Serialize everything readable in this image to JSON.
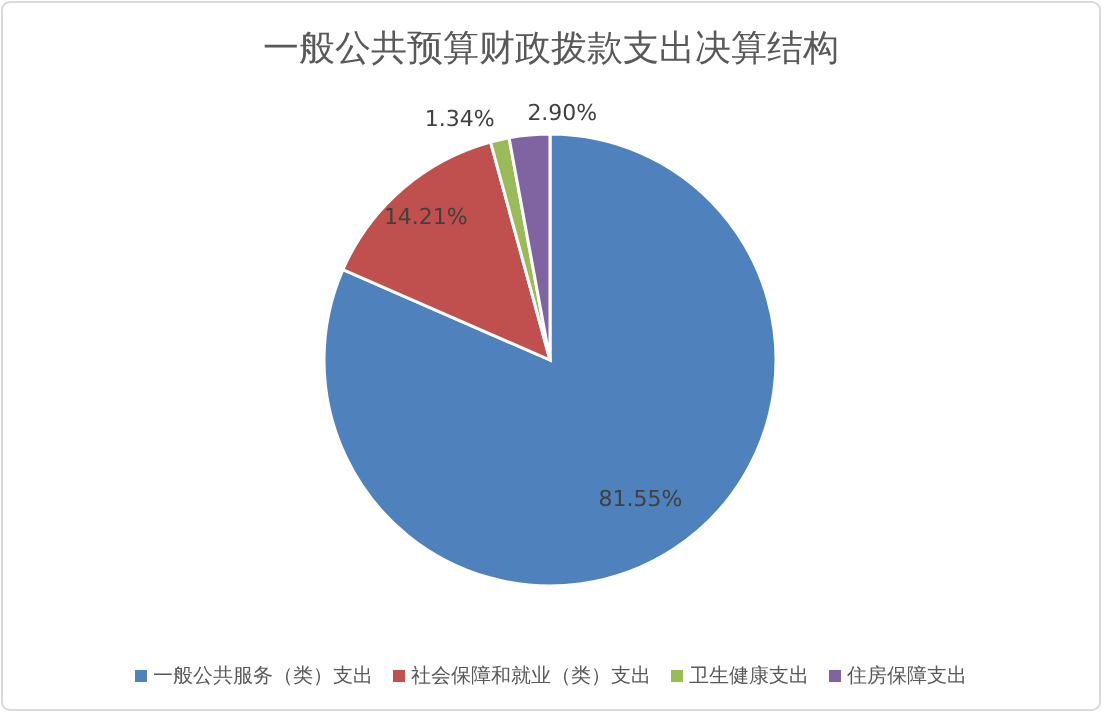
{
  "chart_data": {
    "type": "pie",
    "title": "一般公共预算财政拨款支出决算结构",
    "categories": [
      "一般公共服务（类）支出",
      "社会保障和就业（类）支出",
      "卫生健康支出",
      "住房保障支出"
    ],
    "values": [
      81.55,
      14.21,
      1.34,
      2.9
    ],
    "value_labels": [
      "81.55%",
      "14.21%",
      "1.34%",
      "2.90%"
    ],
    "colors": [
      "#4f81bd",
      "#c0504d",
      "#9bbb59",
      "#8064a2"
    ],
    "legend": "bottom"
  }
}
